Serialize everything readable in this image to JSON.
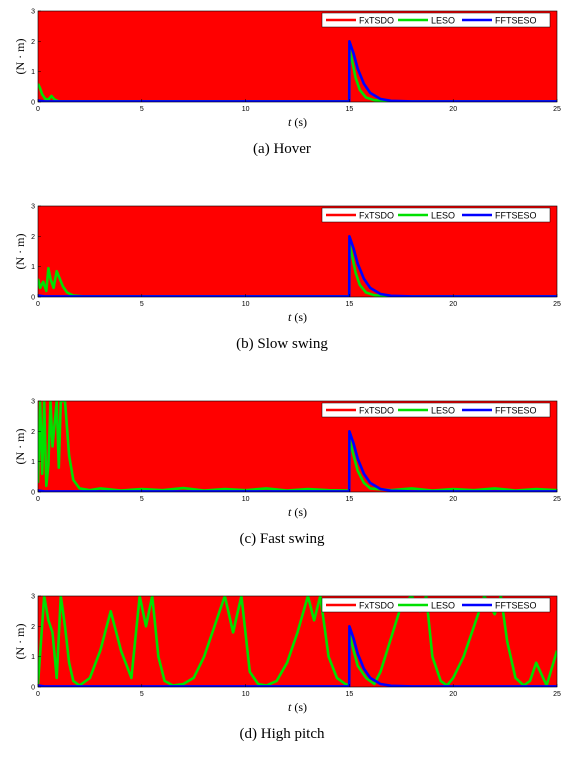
{
  "chart_data": [
    {
      "type": "line",
      "caption": "(a) Hover",
      "xlabel_var": "t",
      "xlabel_unit": "(s)",
      "ylabel": "(N · m)",
      "xlim": [
        0,
        25
      ],
      "ylim": [
        0,
        3
      ],
      "xticks": [
        "0",
        "5",
        "10",
        "15",
        "20",
        "25"
      ],
      "yticks": [
        "0",
        "1",
        "2",
        "3"
      ],
      "legend_position": "top-right",
      "series": [
        {
          "name": "FxTSDO",
          "color": "#ff0000",
          "x": [
            0,
            25
          ],
          "y": [
            3,
            3
          ],
          "fill": true
        },
        {
          "name": "LESO",
          "color": "#00e000",
          "x": [
            0,
            0.1,
            0.2,
            0.35,
            0.5,
            0.65,
            0.8,
            1.0,
            1.5,
            2,
            14.99,
            15.0,
            15.15,
            15.3,
            15.5,
            15.8,
            16.2,
            16.8,
            17.5,
            25
          ],
          "y": [
            0.6,
            0.45,
            0.25,
            0.1,
            0.08,
            0.2,
            0.08,
            0.02,
            0.02,
            0.02,
            0.02,
            1.75,
            1.3,
            0.8,
            0.4,
            0.15,
            0.06,
            0.02,
            0.02,
            0.02
          ]
        },
        {
          "name": "FFTSESO",
          "color": "#0000ff",
          "x": [
            0,
            0.3,
            1,
            14.99,
            15.0,
            15.2,
            15.4,
            15.7,
            16.0,
            16.5,
            17.0,
            18,
            25
          ],
          "y": [
            0.05,
            0.02,
            0.02,
            0.02,
            2.0,
            1.6,
            1.1,
            0.6,
            0.3,
            0.1,
            0.04,
            0.02,
            0.02
          ]
        }
      ]
    },
    {
      "type": "line",
      "caption": "(b) Slow swing",
      "xlabel_var": "t",
      "xlabel_unit": "(s)",
      "ylabel": "(N · m)",
      "xlim": [
        0,
        25
      ],
      "ylim": [
        0,
        3
      ],
      "xticks": [
        "0",
        "5",
        "10",
        "15",
        "20",
        "25"
      ],
      "yticks": [
        "0",
        "1",
        "2",
        "3"
      ],
      "legend_position": "top-right",
      "series": [
        {
          "name": "FxTSDO",
          "color": "#ff0000",
          "x": [
            0,
            25
          ],
          "y": [
            3,
            3
          ],
          "fill": true
        },
        {
          "name": "LESO",
          "color": "#00e000",
          "x": [
            0,
            0.1,
            0.25,
            0.4,
            0.5,
            0.6,
            0.75,
            0.9,
            1.05,
            1.2,
            1.4,
            1.7,
            2.2,
            14.99,
            15.0,
            15.15,
            15.3,
            15.5,
            15.8,
            16.2,
            16.8,
            17.5,
            25
          ],
          "y": [
            0.6,
            0.3,
            0.5,
            0.2,
            0.95,
            0.6,
            0.3,
            0.85,
            0.6,
            0.35,
            0.15,
            0.05,
            0.02,
            0.02,
            1.75,
            1.3,
            0.8,
            0.4,
            0.15,
            0.06,
            0.02,
            0.02,
            0.02
          ]
        },
        {
          "name": "FFTSESO",
          "color": "#0000ff",
          "x": [
            0,
            0.3,
            1,
            14.99,
            15.0,
            15.2,
            15.4,
            15.7,
            16.0,
            16.5,
            17.0,
            18,
            25
          ],
          "y": [
            0.05,
            0.02,
            0.02,
            0.02,
            2.0,
            1.6,
            1.1,
            0.6,
            0.3,
            0.1,
            0.04,
            0.02,
            0.02
          ]
        }
      ]
    },
    {
      "type": "line",
      "caption": "(c) Fast swing",
      "xlabel_var": "t",
      "xlabel_unit": "(s)",
      "ylabel": "(N · m)",
      "xlim": [
        0,
        25
      ],
      "ylim": [
        0,
        3
      ],
      "xticks": [
        "0",
        "5",
        "10",
        "15",
        "20",
        "25"
      ],
      "yticks": [
        "0",
        "1",
        "2",
        "3"
      ],
      "legend_position": "top-right",
      "series": [
        {
          "name": "FxTSDO",
          "color": "#ff0000",
          "x": [
            0,
            25
          ],
          "y": [
            3,
            3
          ],
          "fill": true
        },
        {
          "name": "LESO",
          "color": "#00e000",
          "x": [
            0,
            0.1,
            0.2,
            0.3,
            0.4,
            0.5,
            0.6,
            0.7,
            0.9,
            1.0,
            1.1,
            1.3,
            1.5,
            1.7,
            2.0,
            2.5,
            3,
            4,
            5,
            6,
            7,
            8,
            9,
            10,
            11,
            12,
            13,
            14,
            14.99,
            15.0,
            15.2,
            15.4,
            15.7,
            16,
            17,
            18,
            19,
            20,
            21,
            22,
            23,
            24,
            25
          ],
          "y": [
            0.3,
            3,
            0.6,
            3,
            0.2,
            0.9,
            3,
            1.5,
            3,
            0.8,
            3,
            3,
            1.2,
            0.4,
            0.12,
            0.06,
            0.12,
            0.05,
            0.1,
            0.06,
            0.13,
            0.05,
            0.1,
            0.06,
            0.12,
            0.05,
            0.1,
            0.06,
            0.05,
            1.75,
            1.2,
            0.7,
            0.3,
            0.12,
            0.06,
            0.12,
            0.05,
            0.1,
            0.06,
            0.12,
            0.05,
            0.1,
            0.06
          ]
        },
        {
          "name": "FFTSESO",
          "color": "#0000ff",
          "x": [
            0,
            0.3,
            1,
            14.99,
            15.0,
            15.2,
            15.4,
            15.7,
            16.0,
            16.5,
            17.0,
            18,
            25
          ],
          "y": [
            0.05,
            0.02,
            0.02,
            0.02,
            2.0,
            1.6,
            1.1,
            0.6,
            0.3,
            0.1,
            0.04,
            0.02,
            0.02
          ]
        }
      ]
    },
    {
      "type": "line",
      "caption": "(d) High pitch",
      "xlabel_var": "t",
      "xlabel_unit": "(s)",
      "ylabel": "(N · m)",
      "xlim": [
        0,
        25
      ],
      "ylim": [
        0,
        3
      ],
      "xticks": [
        "0",
        "5",
        "10",
        "15",
        "20",
        "25"
      ],
      "yticks": [
        "0",
        "1",
        "2",
        "3"
      ],
      "legend_position": "top-right",
      "series": [
        {
          "name": "FxTSDO",
          "color": "#ff0000",
          "x": [
            0,
            25
          ],
          "y": [
            3,
            3
          ],
          "fill": true
        },
        {
          "name": "LESO",
          "color": "#00e000",
          "x": [
            0,
            0.3,
            0.5,
            0.7,
            0.9,
            1.1,
            1.3,
            1.5,
            1.7,
            2.0,
            2.5,
            3.0,
            3.5,
            4.0,
            4.5,
            4.9,
            5.2,
            5.5,
            5.8,
            6.1,
            6.5,
            7.0,
            7.5,
            8.0,
            8.5,
            9.0,
            9.4,
            9.8,
            10.2,
            10.6,
            11.0,
            11.5,
            12.0,
            12.5,
            13.0,
            13.3,
            13.6,
            14.0,
            14.4,
            14.8,
            14.99,
            15.0,
            15.2,
            15.4,
            15.8,
            16.2,
            16.5,
            17.0,
            17.5,
            18.0,
            18.4,
            18.7,
            19.0,
            19.4,
            19.7,
            20.0,
            20.5,
            21.0,
            21.5,
            22.0,
            22.3,
            22.6,
            23.0,
            23.4,
            23.7,
            24.0,
            24.5,
            25
          ],
          "y": [
            0.1,
            3,
            2.2,
            1.8,
            0.3,
            3,
            2.0,
            0.8,
            0.2,
            0.05,
            0.3,
            1.2,
            2.5,
            1.2,
            0.3,
            3,
            2.0,
            3,
            1.0,
            0.2,
            0.05,
            0.1,
            0.3,
            1.0,
            2.0,
            3,
            1.8,
            3,
            0.5,
            0.1,
            0.05,
            0.2,
            0.8,
            1.8,
            3,
            2.2,
            3,
            1.0,
            0.3,
            0.1,
            0.05,
            1.75,
            1.2,
            0.7,
            0.3,
            0.1,
            0.5,
            1.6,
            2.7,
            3,
            2.5,
            3,
            1.0,
            0.2,
            0.05,
            0.3,
            1.0,
            2.0,
            3,
            2.4,
            3,
            1.5,
            0.3,
            0.05,
            0.2,
            0.8,
            0.05,
            1.2
          ]
        },
        {
          "name": "FFTSESO",
          "color": "#0000ff",
          "x": [
            0,
            0.3,
            1,
            14.99,
            15.0,
            15.2,
            15.4,
            15.7,
            16.0,
            16.5,
            17.0,
            18,
            25
          ],
          "y": [
            0.05,
            0.02,
            0.02,
            0.02,
            2.0,
            1.6,
            1.1,
            0.6,
            0.3,
            0.1,
            0.04,
            0.02,
            0.02
          ]
        }
      ]
    }
  ]
}
